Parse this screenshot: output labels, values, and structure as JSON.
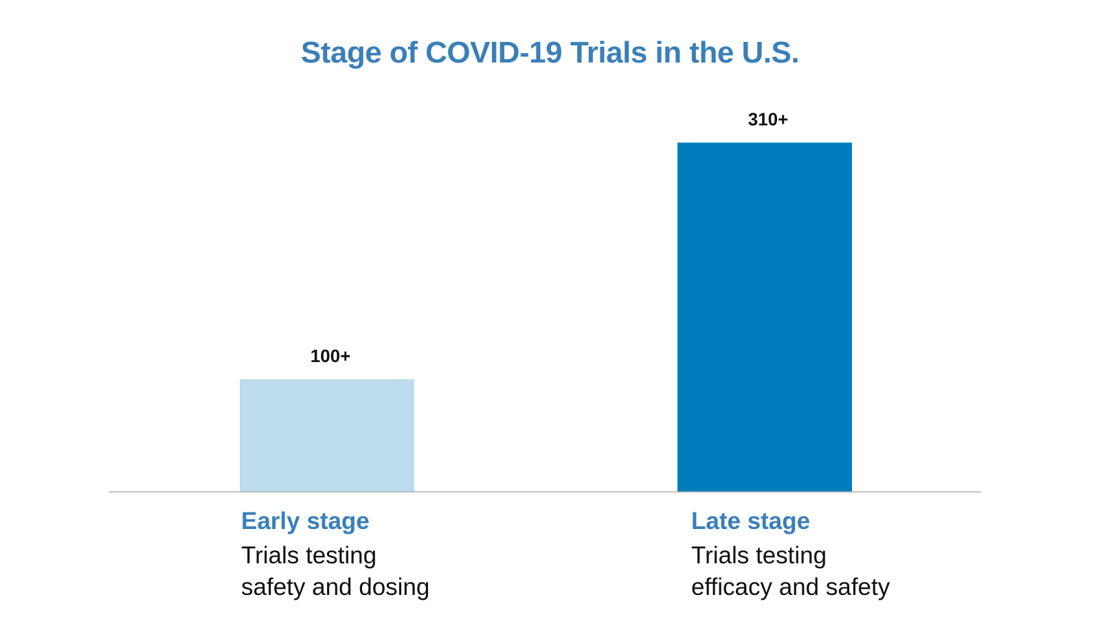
{
  "chart_data": {
    "type": "bar",
    "title": "Stage of COVID-19 Trials in the U.S.",
    "categories": [
      "Early stage",
      "Late stage"
    ],
    "values": [
      100,
      310
    ],
    "value_labels": [
      "100+",
      "310+"
    ],
    "descriptions": [
      [
        "Trials testing",
        "safety and dosing"
      ],
      [
        "Trials testing",
        "efficacy and safety"
      ]
    ],
    "colors": [
      "#bddcee",
      "#007dbc"
    ],
    "ylim": [
      0,
      320
    ],
    "grid": false,
    "legend": "none"
  },
  "colors": {
    "title": "#3a7fb8",
    "category_name": "#3a7fb8",
    "baseline": "#b0b0b0",
    "text": "#111111"
  }
}
